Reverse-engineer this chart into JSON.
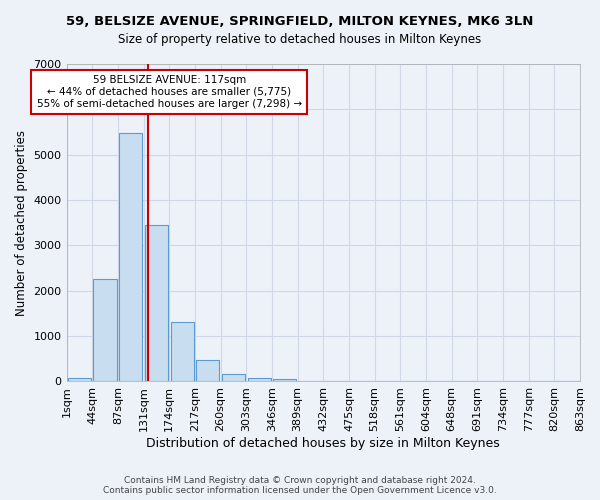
{
  "title": "59, BELSIZE AVENUE, SPRINGFIELD, MILTON KEYNES, MK6 3LN",
  "subtitle": "Size of property relative to detached houses in Milton Keynes",
  "xlabel": "Distribution of detached houses by size in Milton Keynes",
  "ylabel": "Number of detached properties",
  "footer_line1": "Contains HM Land Registry data © Crown copyright and database right 2024.",
  "footer_line2": "Contains public sector information licensed under the Open Government Licence v3.0.",
  "bin_labels": [
    "1sqm",
    "44sqm",
    "87sqm",
    "131sqm",
    "174sqm",
    "217sqm",
    "260sqm",
    "303sqm",
    "346sqm",
    "389sqm",
    "432sqm",
    "475sqm",
    "518sqm",
    "561sqm",
    "604sqm",
    "648sqm",
    "691sqm",
    "734sqm",
    "777sqm",
    "820sqm",
    "863sqm"
  ],
  "bar_values": [
    80,
    2270,
    5470,
    3450,
    1310,
    470,
    155,
    80,
    45,
    0,
    0,
    0,
    0,
    0,
    0,
    0,
    0,
    0,
    0,
    0
  ],
  "bar_color": "#c9ddf0",
  "bar_edge_color": "#5b9bd5",
  "ylim": [
    0,
    7000
  ],
  "yticks": [
    0,
    1000,
    2000,
    3000,
    4000,
    5000,
    6000,
    7000
  ],
  "vline_color": "#cc0000",
  "annotation_text": "59 BELSIZE AVENUE: 117sqm\n← 44% of detached houses are smaller (5,775)\n55% of semi-detached houses are larger (7,298) →",
  "annotation_box_color": "#ffffff",
  "annotation_edge_color": "#cc0000",
  "grid_color": "#d0d8e8",
  "bg_color": "#edf2f9",
  "plot_bg_color": "#edf2f9"
}
